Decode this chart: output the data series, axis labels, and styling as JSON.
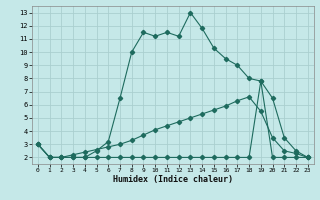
{
  "xlabel": "Humidex (Indice chaleur)",
  "bg_color": "#c5e8e8",
  "grid_color": "#aacfcf",
  "line_color": "#1e6b5e",
  "xlim": [
    -0.5,
    23.5
  ],
  "ylim": [
    1.5,
    13.5
  ],
  "xticks": [
    0,
    1,
    2,
    3,
    4,
    5,
    6,
    7,
    8,
    9,
    10,
    11,
    12,
    13,
    14,
    15,
    16,
    17,
    18,
    19,
    20,
    21,
    22,
    23
  ],
  "yticks": [
    2,
    3,
    4,
    5,
    6,
    7,
    8,
    9,
    10,
    11,
    12,
    13
  ],
  "s1_x": [
    0,
    1,
    2,
    3,
    4,
    5,
    6,
    7,
    8,
    9,
    10,
    11,
    12,
    13,
    14,
    15,
    16,
    17,
    18,
    19,
    20,
    21,
    22,
    23
  ],
  "s1_y": [
    3.0,
    2.0,
    2.0,
    2.0,
    2.0,
    2.5,
    3.2,
    6.5,
    10.0,
    11.5,
    11.2,
    11.5,
    11.2,
    13.0,
    11.8,
    10.3,
    9.5,
    9.0,
    8.0,
    7.8,
    6.5,
    3.5,
    2.5,
    2.0
  ],
  "s2_x": [
    0,
    1,
    2,
    3,
    4,
    5,
    6,
    7,
    8,
    9,
    10,
    11,
    12,
    13,
    14,
    15,
    16,
    17,
    18,
    19,
    20,
    21,
    22,
    23
  ],
  "s2_y": [
    3.0,
    2.0,
    2.0,
    2.2,
    2.4,
    2.6,
    2.8,
    3.0,
    3.3,
    3.7,
    4.1,
    4.4,
    4.7,
    5.0,
    5.3,
    5.6,
    5.9,
    6.3,
    6.6,
    5.5,
    3.5,
    2.5,
    2.3,
    2.0
  ],
  "s3_x": [
    0,
    1,
    2,
    3,
    4,
    5,
    6,
    7,
    8,
    9,
    10,
    11,
    12,
    13,
    14,
    15,
    16,
    17,
    18,
    19,
    20,
    21,
    22,
    23
  ],
  "s3_y": [
    3.0,
    2.0,
    2.0,
    2.0,
    2.0,
    2.0,
    2.0,
    2.0,
    2.0,
    2.0,
    2.0,
    2.0,
    2.0,
    2.0,
    2.0,
    2.0,
    2.0,
    2.0,
    2.0,
    7.8,
    2.0,
    2.0,
    2.0,
    2.0
  ]
}
